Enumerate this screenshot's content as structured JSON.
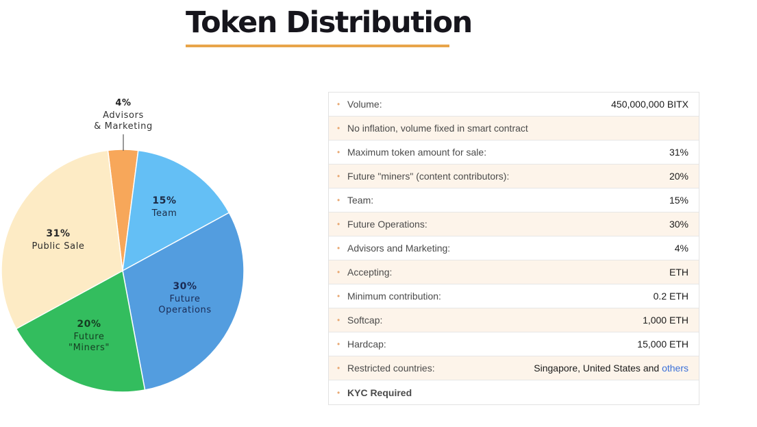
{
  "header": {
    "title": "Token Distribution",
    "underline_color": "#e8a54a"
  },
  "chart_data": {
    "type": "pie",
    "title": "Token Distribution",
    "start_angle_deg": -97,
    "direction": "clockwise",
    "slices": [
      {
        "percent_label": "4%",
        "name": "Advisors & Marketing",
        "line1": "Advisors",
        "line2": "& Marketing",
        "value": 4,
        "color": "#f7a75a"
      },
      {
        "percent_label": "15%",
        "name": "Team",
        "line1": "Team",
        "line2": "",
        "value": 15,
        "color": "#64bff5"
      },
      {
        "percent_label": "30%",
        "name": "Future Operations",
        "line1": "Future",
        "line2": "Operations",
        "value": 30,
        "color": "#539ddf"
      },
      {
        "percent_label": "20%",
        "name": "Future \"Miners\"",
        "line1": "Future",
        "line2": "\"Miners\"",
        "value": 20,
        "color": "#33bd5e"
      },
      {
        "percent_label": "31%",
        "name": "Public Sale",
        "line1": "Public Sale",
        "line2": "",
        "value": 31,
        "color": "#fdebc5"
      }
    ]
  },
  "details": {
    "rows": [
      {
        "label": "Volume:",
        "value": "450,000,000 BITX"
      },
      {
        "label": "No inflation, volume fixed in smart contract",
        "value": ""
      },
      {
        "label": "Maximum token amount for sale:",
        "value": "31%"
      },
      {
        "label": "Future \"miners\" (content contributors):",
        "value": "20%"
      },
      {
        "label": "Team:",
        "value": "15%"
      },
      {
        "label": "Future Operations:",
        "value": "30%"
      },
      {
        "label": "Advisors and Marketing:",
        "value": "4%"
      },
      {
        "label": "Accepting:",
        "value": "ETH"
      },
      {
        "label": "Minimum contribution:",
        "value": "0.2 ETH"
      },
      {
        "label": "Softcap:",
        "value": "1,000 ETH"
      },
      {
        "label": "Hardcap:",
        "value": "15,000 ETH"
      },
      {
        "label": "Restricted countries:",
        "value": "Singapore, United States and ",
        "link": "others"
      },
      {
        "label": "KYC Required",
        "value": ""
      }
    ],
    "bullet": "•"
  }
}
